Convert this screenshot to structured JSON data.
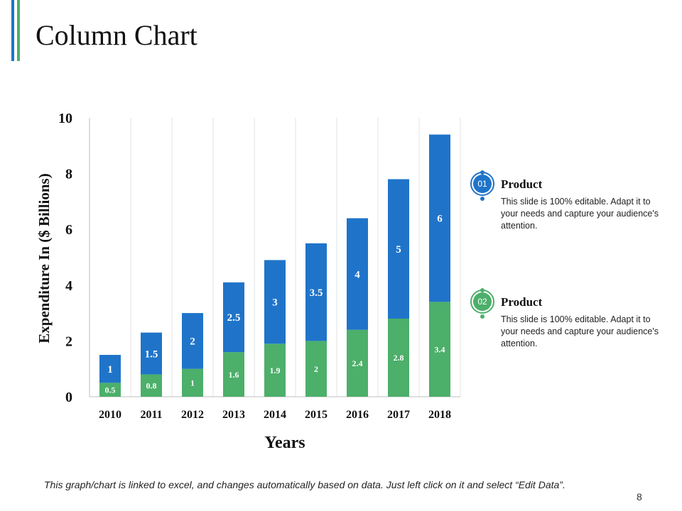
{
  "slide": {
    "title": "Column Chart",
    "footer_note": "This graph/chart is linked to excel, and changes automatically based on data. Just left click on it and select “Edit Data”.",
    "page_number": "8"
  },
  "legend": [
    {
      "badge": "01",
      "title": "Product",
      "text": "This slide is 100% editable. Adapt it to your needs and capture your audience's attention.",
      "color": "#1f74c9"
    },
    {
      "badge": "02",
      "title": "Product",
      "text": "This slide is 100% editable. Adapt it to your needs and capture your audience's attention.",
      "color": "#4caf6a"
    }
  ],
  "chart_data": {
    "type": "bar",
    "stacked": true,
    "categories": [
      "2010",
      "2011",
      "2012",
      "2013",
      "2014",
      "2015",
      "2016",
      "2017",
      "2018"
    ],
    "series": [
      {
        "name": "Product 02",
        "color": "#4caf6a",
        "values": [
          0.5,
          0.8,
          1,
          1.6,
          1.9,
          2,
          2.4,
          2.8,
          3.4
        ]
      },
      {
        "name": "Product 01",
        "color": "#1f74c9",
        "values": [
          1,
          1.5,
          2,
          2.5,
          3,
          3.5,
          4,
          5,
          6
        ]
      }
    ],
    "xlabel": "Years",
    "ylabel": "Expenditure In ($ Billions)",
    "ylim": [
      0,
      10
    ],
    "yticks": [
      "0",
      "2",
      "4",
      "6",
      "8",
      "10"
    ],
    "grid": "vertical"
  }
}
